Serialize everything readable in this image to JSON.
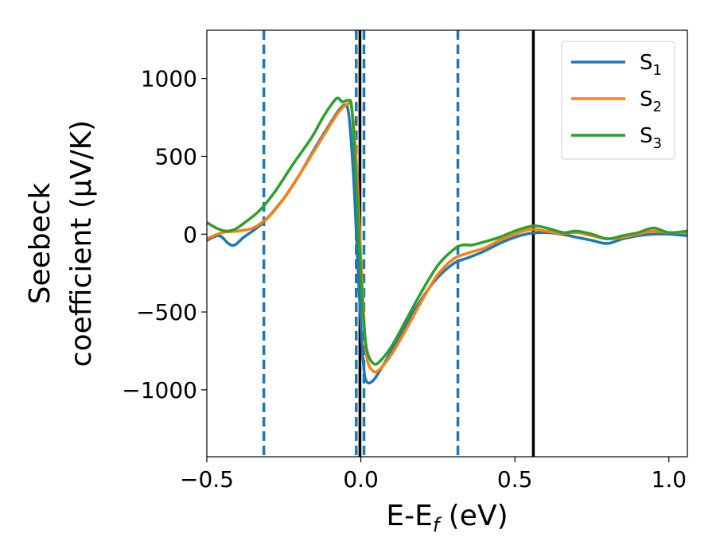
{
  "chart_data": {
    "type": "line",
    "xlabel_parts": [
      "E-E",
      "f",
      " (eV)"
    ],
    "ylabel_lines": [
      "Seebeck",
      "coefficient  (μV/K)"
    ],
    "xlim": [
      -0.5,
      1.06
    ],
    "ylim": [
      -1430,
      1310
    ],
    "xticks": [
      -0.5,
      0.0,
      0.5,
      1.0
    ],
    "xtick_labels": [
      "−0.5",
      "0.0",
      "0.5",
      "1.0"
    ],
    "yticks": [
      -1000,
      -500,
      0,
      500,
      1000
    ],
    "ytick_labels": [
      "−1000",
      "−500",
      "0",
      "500",
      "1000"
    ],
    "legend_position": "top-right",
    "vlines_dashed": {
      "color": "#1f77b4",
      "x": [
        -0.315,
        -0.015,
        0.01,
        0.315
      ]
    },
    "vlines_solid": {
      "color": "#000000",
      "x": [
        -0.003,
        0.56
      ]
    },
    "series": [
      {
        "name": "S",
        "sub": "1",
        "color": "#1f77b4",
        "points": [
          [
            -0.5,
            -40
          ],
          [
            -0.46,
            -10
          ],
          [
            -0.43,
            -60
          ],
          [
            -0.41,
            -70
          ],
          [
            -0.38,
            -20
          ],
          [
            -0.32,
            70
          ],
          [
            -0.25,
            230
          ],
          [
            -0.2,
            380
          ],
          [
            -0.15,
            550
          ],
          [
            -0.1,
            710
          ],
          [
            -0.07,
            800
          ],
          [
            -0.05,
            830
          ],
          [
            -0.04,
            780
          ],
          [
            -0.03,
            560
          ],
          [
            -0.02,
            230
          ],
          [
            -0.01,
            -200
          ],
          [
            0.0,
            -580
          ],
          [
            0.01,
            -870
          ],
          [
            0.02,
            -950
          ],
          [
            0.04,
            -940
          ],
          [
            0.07,
            -850
          ],
          [
            0.12,
            -680
          ],
          [
            0.18,
            -470
          ],
          [
            0.24,
            -300
          ],
          [
            0.3,
            -190
          ],
          [
            0.35,
            -150
          ],
          [
            0.4,
            -110
          ],
          [
            0.45,
            -60
          ],
          [
            0.5,
            -20
          ],
          [
            0.55,
            5
          ],
          [
            0.6,
            10
          ],
          [
            0.65,
            0
          ],
          [
            0.7,
            -20
          ],
          [
            0.75,
            -40
          ],
          [
            0.8,
            -60
          ],
          [
            0.85,
            -30
          ],
          [
            0.9,
            -10
          ],
          [
            0.95,
            0
          ],
          [
            1.0,
            0
          ],
          [
            1.06,
            -10
          ]
        ]
      },
      {
        "name": "S",
        "sub": "2",
        "color": "#ff7f0e",
        "points": [
          [
            -0.5,
            -30
          ],
          [
            -0.45,
            10
          ],
          [
            -0.4,
            20
          ],
          [
            -0.35,
            40
          ],
          [
            -0.3,
            110
          ],
          [
            -0.25,
            230
          ],
          [
            -0.2,
            380
          ],
          [
            -0.15,
            540
          ],
          [
            -0.1,
            700
          ],
          [
            -0.07,
            790
          ],
          [
            -0.04,
            840
          ],
          [
            -0.03,
            810
          ],
          [
            -0.02,
            620
          ],
          [
            -0.01,
            300
          ],
          [
            0.0,
            -150
          ],
          [
            0.01,
            -550
          ],
          [
            0.02,
            -800
          ],
          [
            0.04,
            -880
          ],
          [
            0.06,
            -870
          ],
          [
            0.1,
            -770
          ],
          [
            0.15,
            -600
          ],
          [
            0.2,
            -420
          ],
          [
            0.25,
            -260
          ],
          [
            0.3,
            -160
          ],
          [
            0.35,
            -120
          ],
          [
            0.4,
            -90
          ],
          [
            0.45,
            -40
          ],
          [
            0.5,
            0
          ],
          [
            0.55,
            30
          ],
          [
            0.6,
            20
          ],
          [
            0.65,
            5
          ],
          [
            0.7,
            10
          ],
          [
            0.75,
            -10
          ],
          [
            0.8,
            -30
          ],
          [
            0.85,
            -20
          ],
          [
            0.9,
            0
          ],
          [
            0.95,
            20
          ],
          [
            1.0,
            10
          ],
          [
            1.06,
            10
          ]
        ]
      },
      {
        "name": "S",
        "sub": "3",
        "color": "#2ca02c",
        "points": [
          [
            -0.5,
            75
          ],
          [
            -0.47,
            40
          ],
          [
            -0.44,
            20
          ],
          [
            -0.41,
            30
          ],
          [
            -0.38,
            70
          ],
          [
            -0.33,
            150
          ],
          [
            -0.28,
            270
          ],
          [
            -0.22,
            450
          ],
          [
            -0.16,
            620
          ],
          [
            -0.12,
            760
          ],
          [
            -0.08,
            870
          ],
          [
            -0.06,
            850
          ],
          [
            -0.04,
            860
          ],
          [
            -0.03,
            820
          ],
          [
            -0.02,
            520
          ],
          [
            -0.01,
            150
          ],
          [
            0.0,
            -280
          ],
          [
            0.01,
            -580
          ],
          [
            0.02,
            -750
          ],
          [
            0.04,
            -830
          ],
          [
            0.06,
            -820
          ],
          [
            0.1,
            -720
          ],
          [
            0.15,
            -540
          ],
          [
            0.2,
            -360
          ],
          [
            0.25,
            -200
          ],
          [
            0.3,
            -100
          ],
          [
            0.33,
            -70
          ],
          [
            0.36,
            -70
          ],
          [
            0.4,
            -50
          ],
          [
            0.45,
            -20
          ],
          [
            0.5,
            20
          ],
          [
            0.55,
            50
          ],
          [
            0.58,
            50
          ],
          [
            0.62,
            30
          ],
          [
            0.66,
            10
          ],
          [
            0.7,
            20
          ],
          [
            0.75,
            0
          ],
          [
            0.8,
            -30
          ],
          [
            0.85,
            -10
          ],
          [
            0.9,
            10
          ],
          [
            0.95,
            40
          ],
          [
            1.0,
            10
          ],
          [
            1.06,
            20
          ]
        ]
      }
    ]
  }
}
